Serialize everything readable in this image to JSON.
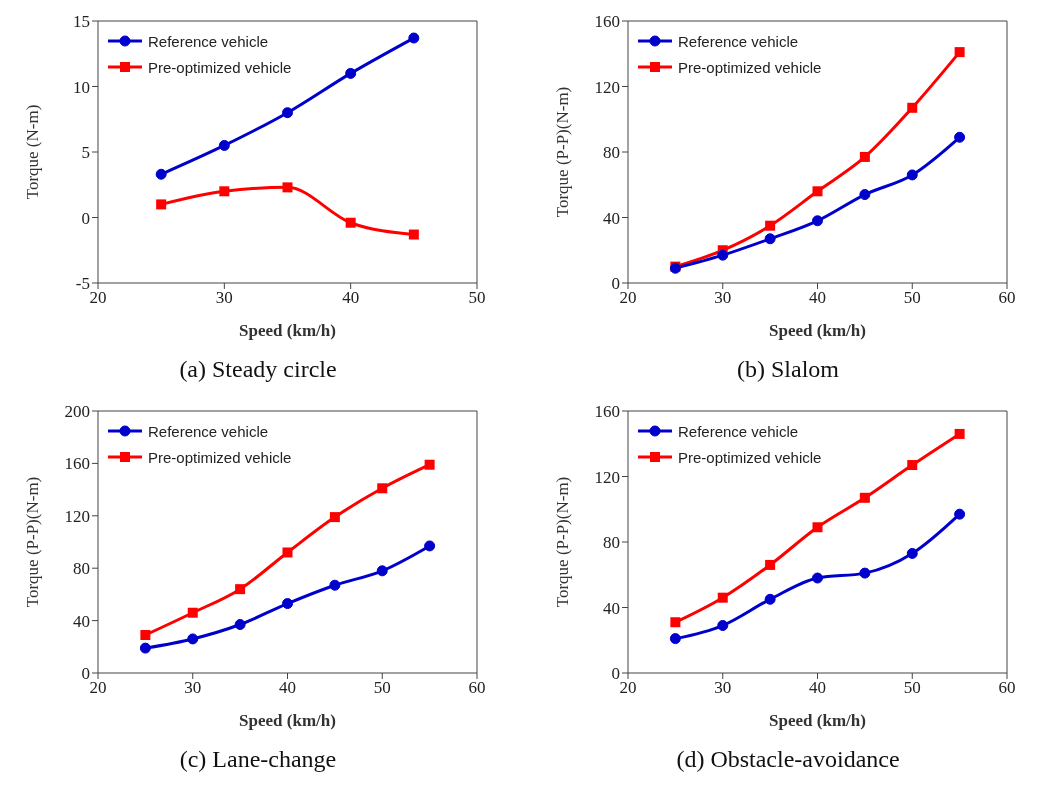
{
  "chart_data": [
    {
      "type": "line",
      "title": "(a) Steady circle",
      "xlabel": "Speed (km/h)",
      "ylabel": "Torque (N-m)",
      "x": [
        25,
        30,
        35,
        40,
        45
      ],
      "xlim": [
        20,
        50
      ],
      "xticks": [
        20,
        30,
        40,
        50
      ],
      "ylim": [
        -5,
        15
      ],
      "yticks": [
        -5,
        0,
        5,
        10,
        15
      ],
      "legend": "top left",
      "grid": false,
      "series": [
        {
          "name": "Reference vehicle",
          "color": "#0000cc",
          "marker": "circle",
          "values": [
            3.3,
            5.5,
            8.0,
            11.0,
            13.7
          ]
        },
        {
          "name": "Pre-optimized vehicle",
          "color": "#ff0000",
          "marker": "square",
          "values": [
            1.0,
            2.0,
            2.3,
            -0.4,
            -1.3
          ]
        }
      ]
    },
    {
      "type": "line",
      "title": "(b) Slalom",
      "xlabel": "Speed (km/h)",
      "ylabel": "Torque (P-P)(N-m)",
      "x": [
        25,
        30,
        35,
        40,
        45,
        50,
        55
      ],
      "xlim": [
        20,
        60
      ],
      "xticks": [
        20,
        30,
        40,
        50,
        60
      ],
      "ylim": [
        0,
        160
      ],
      "yticks": [
        0,
        40,
        80,
        120,
        160
      ],
      "legend": "top left",
      "grid": false,
      "series": [
        {
          "name": "Reference vehicle",
          "color": "#0000cc",
          "marker": "circle",
          "values": [
            9,
            17,
            27,
            38,
            54,
            66,
            89
          ]
        },
        {
          "name": "Pre-optimized vehicle",
          "color": "#ff0000",
          "marker": "square",
          "values": [
            10,
            20,
            35,
            56,
            77,
            107,
            141
          ]
        }
      ]
    },
    {
      "type": "line",
      "title": "(c) Lane-change",
      "xlabel": "Speed (km/h)",
      "ylabel": "Torque (P-P)(N-m)",
      "x": [
        25,
        30,
        35,
        40,
        45,
        50,
        55
      ],
      "xlim": [
        20,
        60
      ],
      "xticks": [
        20,
        30,
        40,
        50,
        60
      ],
      "ylim": [
        0,
        200
      ],
      "yticks": [
        0,
        40,
        80,
        120,
        160,
        200
      ],
      "legend": "top left",
      "grid": false,
      "series": [
        {
          "name": "Reference vehicle",
          "color": "#0000cc",
          "marker": "circle",
          "values": [
            19,
            26,
            37,
            53,
            67,
            78,
            97
          ]
        },
        {
          "name": "Pre-optimized vehicle",
          "color": "#ff0000",
          "marker": "square",
          "values": [
            29,
            46,
            64,
            92,
            119,
            141,
            159
          ]
        }
      ]
    },
    {
      "type": "line",
      "title": "(d) Obstacle-avoidance",
      "xlabel": "Speed (km/h)",
      "ylabel": "Torque (P-P)(N-m)",
      "x": [
        25,
        30,
        35,
        40,
        45,
        50,
        55
      ],
      "xlim": [
        20,
        60
      ],
      "xticks": [
        20,
        30,
        40,
        50,
        60
      ],
      "ylim": [
        0,
        160
      ],
      "yticks": [
        0,
        40,
        80,
        120,
        160
      ],
      "legend": "top left",
      "grid": false,
      "series": [
        {
          "name": "Reference vehicle",
          "color": "#0000cc",
          "marker": "circle",
          "values": [
            21,
            29,
            45,
            58,
            61,
            73,
            97
          ]
        },
        {
          "name": "Pre-optimized vehicle",
          "color": "#ff0000",
          "marker": "square",
          "values": [
            31,
            46,
            66,
            89,
            107,
            127,
            146
          ]
        }
      ]
    }
  ]
}
